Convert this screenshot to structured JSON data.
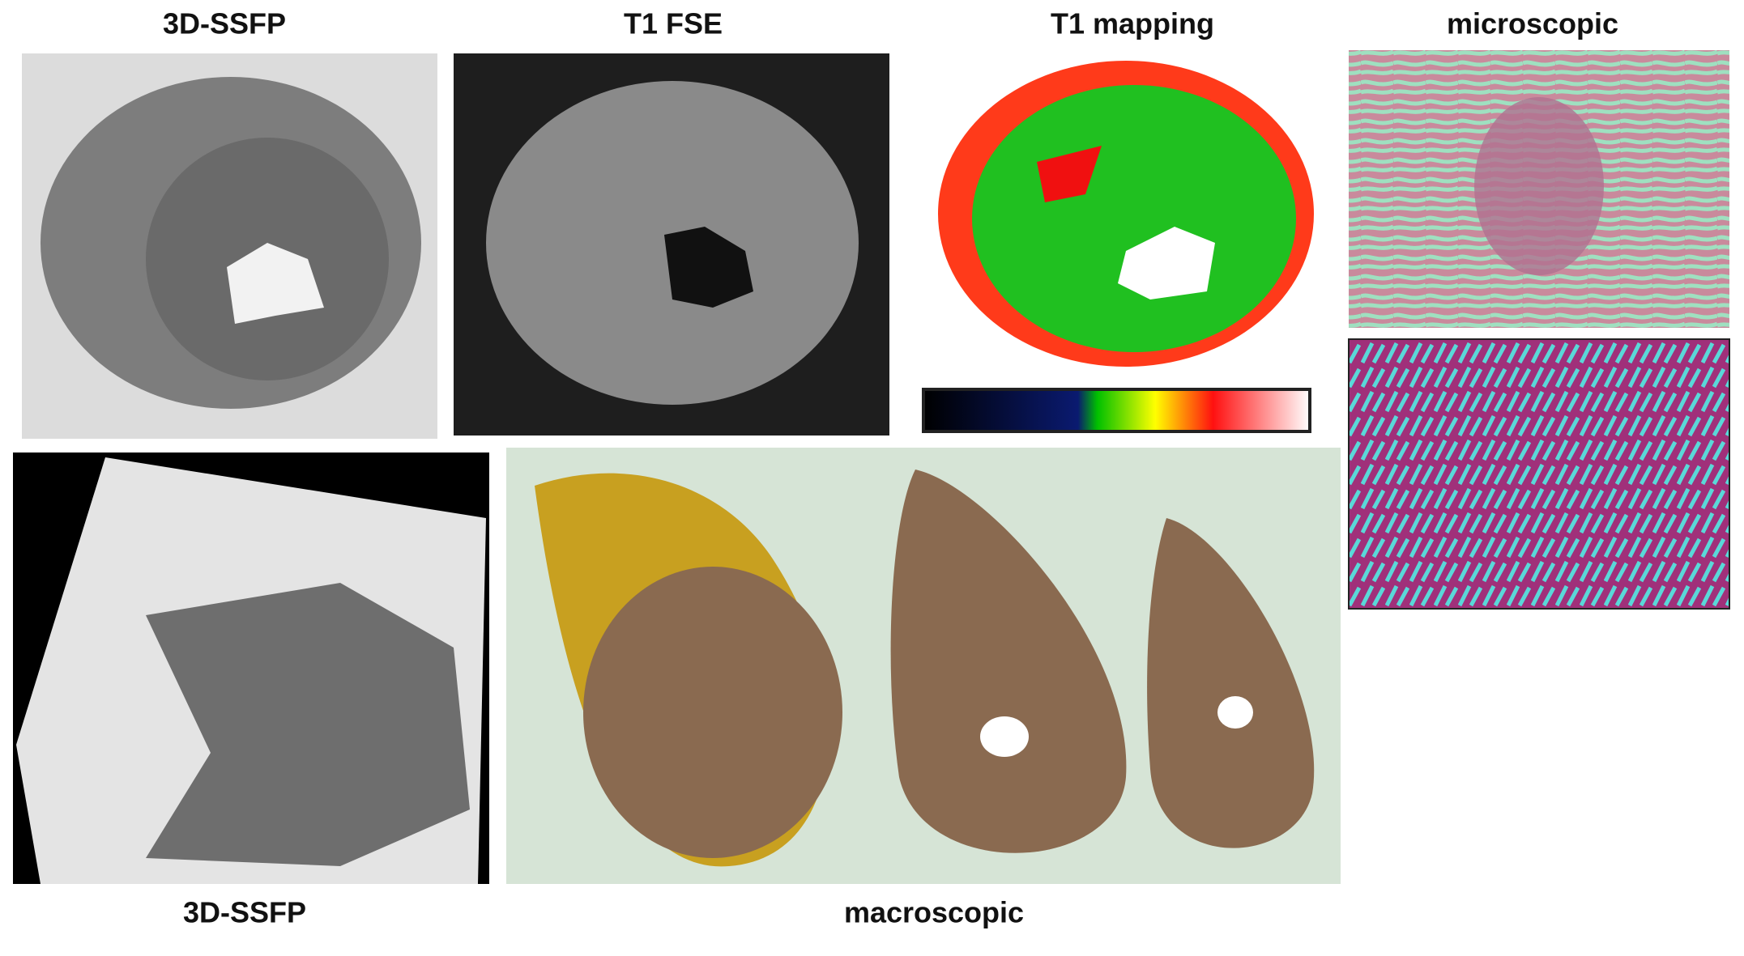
{
  "panels": [
    {
      "label": "3D-SSFP"
    },
    {
      "label": "T1 FSE"
    },
    {
      "label": "T1 mapping"
    },
    {
      "label": "microscopic"
    },
    {
      "label": "3D-SSFP"
    },
    {
      "label": "macroscopic"
    }
  ]
}
